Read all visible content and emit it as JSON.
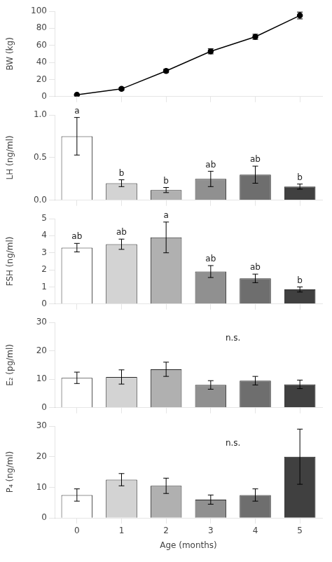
{
  "chart_data": [
    {
      "type": "line",
      "x": [
        0,
        1,
        2,
        3,
        4,
        5
      ],
      "values": [
        2,
        9,
        30,
        53,
        70,
        95
      ],
      "yerr": [
        0.5,
        1.5,
        2,
        3,
        3,
        4
      ],
      "color": "#000000",
      "marker": "circle",
      "line_style": "solid",
      "xlim": [
        -0.5,
        5.5
      ],
      "xticks": [
        0,
        1,
        2,
        3,
        4,
        5
      ],
      "ylim": [
        0,
        100
      ],
      "yticks": [
        0,
        20,
        40,
        60,
        80,
        100
      ],
      "ylabel": "BW (kg)",
      "grid": false,
      "tick_labels": "y"
    },
    {
      "type": "bar",
      "categories": [
        null,
        null,
        null,
        null,
        null,
        null
      ],
      "values": [
        0.75,
        0.2,
        0.12,
        0.25,
        0.3,
        0.16
      ],
      "yerr": [
        0.22,
        0.04,
        0.03,
        0.09,
        0.1,
        0.03
      ],
      "labels": [
        "a",
        "b",
        "b",
        "ab",
        "ab",
        "b"
      ],
      "colors": [
        "#ffffff",
        "#d3d3d3",
        "#b0b0b0",
        "#909090",
        "#6e6e6e",
        "#404040"
      ],
      "ylim": [
        0,
        1.0
      ],
      "yticks": [
        {
          "value": 0,
          "label": "0.0"
        },
        0.5,
        {
          "value": 1,
          "label": "1.0"
        }
      ],
      "ylabel": "LH (ng/ml)",
      "grid": false,
      "tick_labels": "y"
    },
    {
      "type": "bar",
      "categories": [
        null,
        null,
        null,
        null,
        null,
        null
      ],
      "values": [
        3.3,
        3.5,
        3.9,
        1.9,
        1.5,
        0.85
      ],
      "yerr": [
        0.25,
        0.3,
        0.9,
        0.35,
        0.25,
        0.15
      ],
      "labels": [
        "ab",
        "ab",
        "a",
        "ab",
        "ab",
        "b"
      ],
      "colors": [
        "#ffffff",
        "#d3d3d3",
        "#b0b0b0",
        "#909090",
        "#6e6e6e",
        "#404040"
      ],
      "ylim": [
        0,
        5
      ],
      "yticks": [
        0,
        1,
        2,
        3,
        4,
        5
      ],
      "ylabel": "FSH (ng/ml)",
      "grid": false,
      "tick_labels": "y"
    },
    {
      "type": "bar",
      "categories": [
        null,
        null,
        null,
        null,
        null,
        null
      ],
      "values": [
        10.5,
        10.8,
        13.5,
        8.0,
        9.5,
        8.2
      ],
      "yerr": [
        2.0,
        2.5,
        2.5,
        1.5,
        1.5,
        1.5
      ],
      "colors": [
        "#ffffff",
        "#d3d3d3",
        "#b0b0b0",
        "#909090",
        "#6e6e6e",
        "#404040"
      ],
      "annotations": [
        {
          "text": "n.s.",
          "x": 3.5,
          "y": 23
        }
      ],
      "ylim": [
        0,
        30
      ],
      "yticks": [
        0,
        10,
        20,
        30
      ],
      "ylabel": "E₂ (pg/ml)",
      "grid": false,
      "tick_labels": "y"
    },
    {
      "type": "bar",
      "categories": [
        "0",
        "1",
        "2",
        "3",
        "4",
        "5"
      ],
      "values": [
        7.5,
        12.5,
        10.5,
        6.0,
        7.5,
        20.0
      ],
      "yerr": [
        2.0,
        2.0,
        2.5,
        1.5,
        2.0,
        9.0
      ],
      "colors": [
        "#ffffff",
        "#d3d3d3",
        "#b0b0b0",
        "#909090",
        "#6e6e6e",
        "#404040"
      ],
      "annotations": [
        {
          "text": "n.s.",
          "x": 3.5,
          "y": 23
        }
      ],
      "ylim": [
        0,
        30
      ],
      "yticks": [
        0,
        10,
        20,
        30
      ],
      "ylabel": "P₄ (ng/ml)",
      "xlabel": "Age (months)",
      "grid": false
    }
  ]
}
